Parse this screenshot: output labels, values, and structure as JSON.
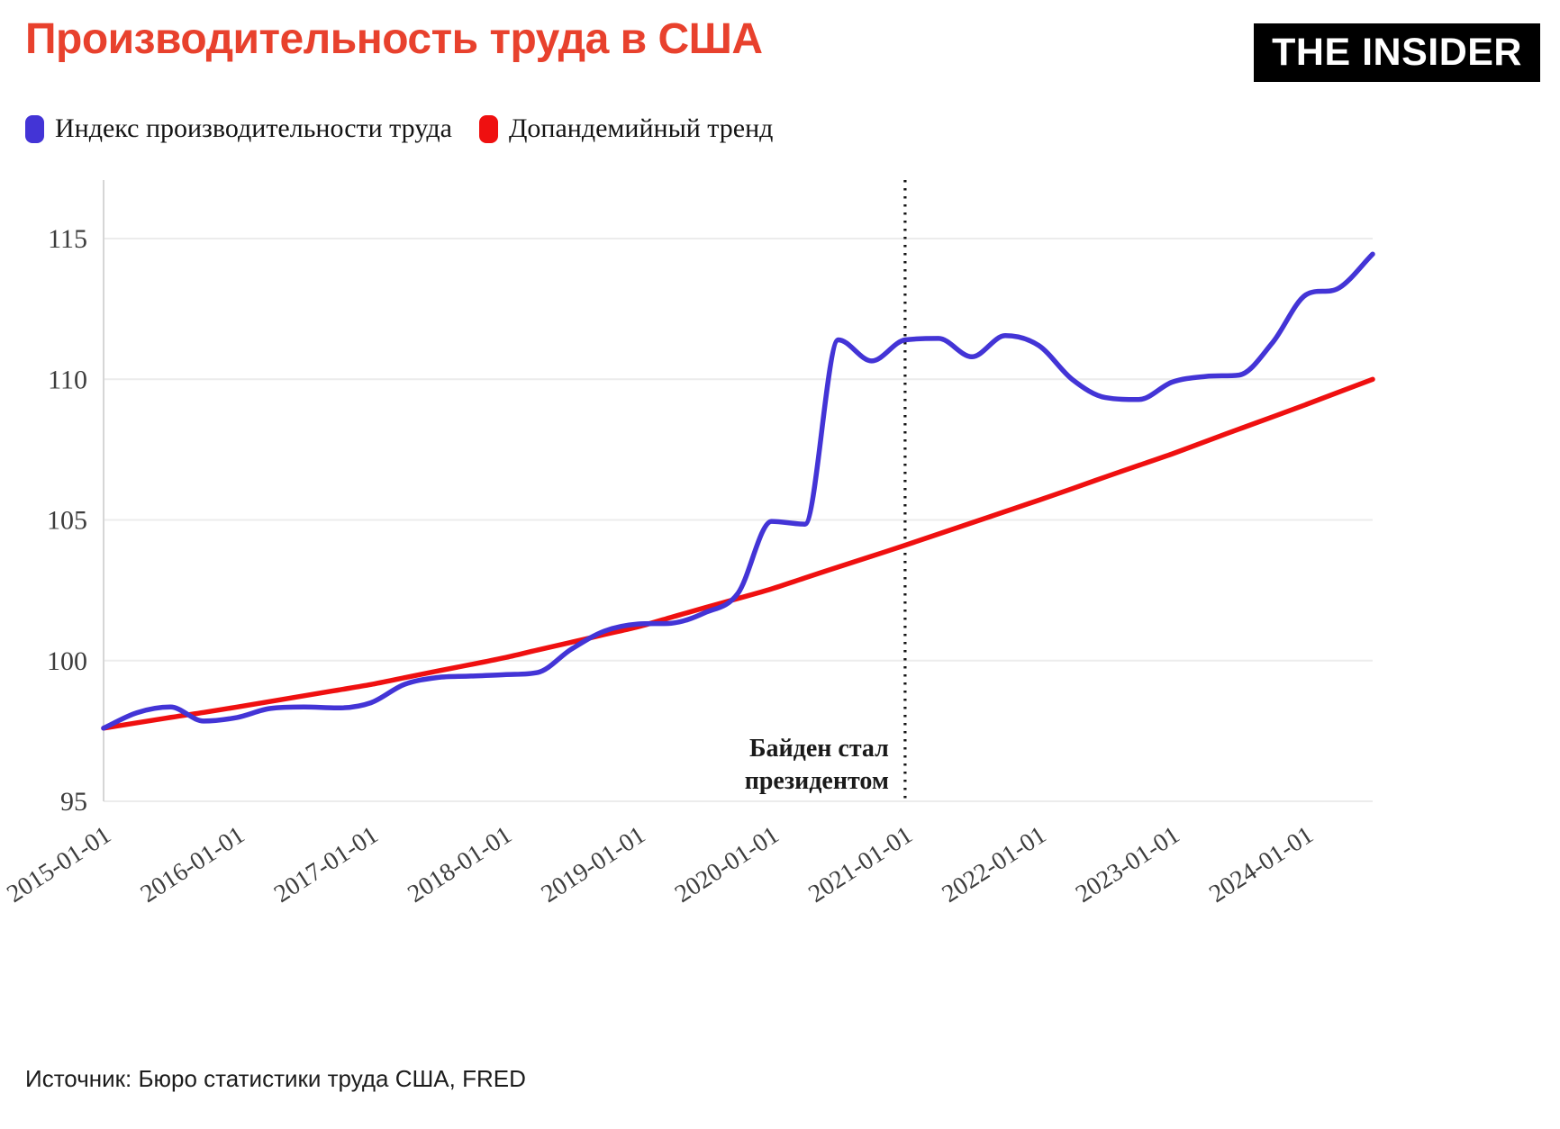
{
  "page": {
    "title": "Производительность труда в США",
    "logo": "THE INSIDER",
    "source": "Источник: Бюро статистики труда США, FRED"
  },
  "colors": {
    "title": "#e8412d",
    "productivity_line": "#4334d6",
    "trend_line": "#ef1010",
    "grid": "#ececec",
    "spine": "#d6d6d6",
    "tick_text": "#3d3d3d",
    "annotation_line": "#141414"
  },
  "chart_data": {
    "type": "line",
    "title": "Производительность труда в США",
    "xlabel": "",
    "ylabel": "",
    "ylim": [
      95,
      115
    ],
    "grid": "horizontal",
    "legend_position": "top-left",
    "y_ticks": [
      95,
      100,
      105,
      110,
      115
    ],
    "x_ticks": [
      "2015-01-01",
      "2016-01-01",
      "2017-01-01",
      "2018-01-01",
      "2019-01-01",
      "2020-01-01",
      "2021-01-01",
      "2022-01-01",
      "2023-01-01",
      "2024-01-01"
    ],
    "x": [
      "2015-01-01",
      "2015-04-01",
      "2015-07-01",
      "2015-10-01",
      "2016-01-01",
      "2016-04-01",
      "2016-07-01",
      "2016-10-01",
      "2017-01-01",
      "2017-04-01",
      "2017-07-01",
      "2017-10-01",
      "2018-01-01",
      "2018-04-01",
      "2018-07-01",
      "2018-10-01",
      "2019-01-01",
      "2019-04-01",
      "2019-07-01",
      "2019-10-01",
      "2020-01-01",
      "2020-04-01",
      "2020-07-01",
      "2020-10-01",
      "2021-01-01",
      "2021-04-01",
      "2021-07-01",
      "2021-10-01",
      "2022-01-01",
      "2022-04-01",
      "2022-07-01",
      "2022-10-01",
      "2023-01-01",
      "2023-04-01",
      "2023-07-01",
      "2023-10-01",
      "2024-01-01",
      "2024-04-01",
      "2024-07-01"
    ],
    "series": [
      {
        "name": "Индекс производительности труда",
        "color": "#4334d6",
        "values": [
          97.6,
          98.15,
          98.35,
          97.85,
          97.98,
          98.3,
          98.35,
          98.32,
          98.5,
          99.15,
          99.4,
          99.45,
          99.5,
          99.58,
          100.4,
          101.05,
          101.3,
          101.33,
          101.7,
          102.4,
          104.95,
          104.85,
          111.4,
          110.65,
          111.4,
          111.45,
          110.8,
          111.55,
          111.2,
          110.0,
          109.35,
          109.28,
          109.9,
          110.1,
          110.15,
          111.3,
          113.0,
          113.25,
          114.45
        ]
      },
      {
        "name": "Допандемийный тренд",
        "color": "#ef1010",
        "values": [
          97.6,
          97.79,
          97.98,
          98.16,
          98.35,
          98.55,
          98.75,
          98.95,
          99.15,
          99.39,
          99.63,
          99.86,
          100.1,
          100.38,
          100.65,
          100.93,
          101.2,
          101.54,
          101.88,
          102.21,
          102.55,
          102.94,
          103.33,
          103.71,
          104.1,
          104.5,
          104.9,
          105.3,
          105.7,
          106.11,
          106.53,
          106.94,
          107.35,
          107.79,
          108.23,
          108.66,
          109.1,
          109.55,
          110.0
        ]
      }
    ],
    "annotation": {
      "x": "2021-01-01",
      "lines": [
        "Байден стал",
        "президентом"
      ]
    }
  }
}
